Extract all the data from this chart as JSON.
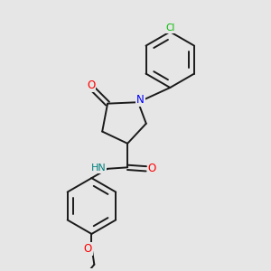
{
  "bg_color": "#e6e6e6",
  "bond_color": "#1a1a1a",
  "atom_colors": {
    "O": "#ff0000",
    "N_pyr": "#0000ff",
    "N_amide": "#008080",
    "Cl": "#00bb00",
    "C": "#1a1a1a"
  },
  "figsize": [
    3.0,
    3.0
  ],
  "dpi": 100
}
